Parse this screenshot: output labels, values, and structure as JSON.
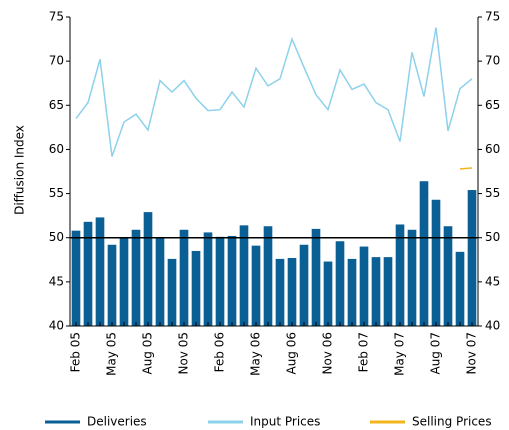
{
  "chart_data": {
    "type": "bar-line",
    "y_label": "Diffusion Index",
    "categories": [
      "Feb 05",
      null,
      null,
      "May 05",
      null,
      null,
      "Aug 05",
      null,
      null,
      "Nov 05",
      null,
      null,
      "Feb 06",
      null,
      null,
      "May 06",
      null,
      null,
      "Aug 06",
      null,
      null,
      "Nov 06",
      null,
      null,
      "Feb 07",
      null,
      null,
      "May 07",
      null,
      null,
      "Aug 07",
      null,
      null,
      "Nov 07"
    ],
    "series": [
      {
        "name": "Deliveries",
        "color": "#0a5f94",
        "kind": "bar",
        "values": [
          50.8,
          51.8,
          52.3,
          49.2,
          50.0,
          50.9,
          52.9,
          50.0,
          47.6,
          50.9,
          48.5,
          50.6,
          50.1,
          50.2,
          51.4,
          49.1,
          51.3,
          47.6,
          47.7,
          49.2,
          51.0,
          47.3,
          49.6,
          47.6,
          49.0,
          47.8,
          47.8,
          51.5,
          50.9,
          56.4,
          54.3,
          51.3,
          48.4,
          55.4
        ]
      },
      {
        "name": "Input Prices",
        "color": "#8dd1eb",
        "kind": "line",
        "values": [
          63.5,
          65.3,
          70.2,
          59.2,
          63.1,
          64.0,
          62.2,
          67.8,
          66.5,
          67.8,
          65.8,
          64.4,
          64.5,
          66.5,
          64.8,
          69.2,
          67.2,
          68.0,
          72.5,
          69.3,
          66.2,
          64.5,
          69.0,
          66.8,
          67.4,
          65.3,
          64.5,
          60.9,
          71.0,
          66.0,
          73.8,
          62.1,
          66.9,
          68.0
        ]
      },
      {
        "name": "Selling Prices",
        "color": "#f2b51c",
        "kind": "line",
        "values": [
          null,
          null,
          null,
          null,
          null,
          null,
          null,
          null,
          null,
          null,
          null,
          null,
          null,
          null,
          null,
          null,
          null,
          null,
          null,
          null,
          null,
          null,
          null,
          null,
          null,
          null,
          null,
          null,
          null,
          null,
          null,
          null,
          57.8,
          57.9
        ]
      }
    ],
    "ylim": [
      40,
      75
    ],
    "yticks": [
      40,
      45,
      50,
      55,
      60,
      65,
      70,
      75
    ],
    "y2lim": [
      40,
      75
    ],
    "y2ticks": [
      40,
      45,
      50,
      55,
      60,
      65,
      70,
      75
    ],
    "reference_line": 50,
    "legend": "bottom"
  }
}
